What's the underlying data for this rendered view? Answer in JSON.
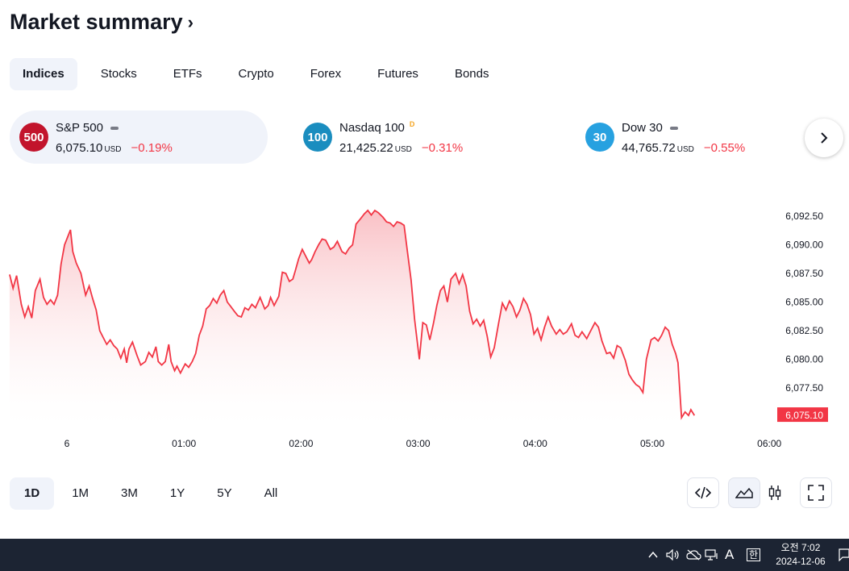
{
  "page": {
    "title": "Market summary",
    "title_chevron": "›"
  },
  "tabs": [
    "Indices",
    "Stocks",
    "ETFs",
    "Crypto",
    "Forex",
    "Futures",
    "Bonds"
  ],
  "active_tab": "Indices",
  "cards": [
    {
      "badge": "500",
      "badge_color": "#c2142c",
      "name": "S&P 500",
      "marker": "dash",
      "value": "6,075.10",
      "currency": "USD",
      "change": "−0.19%",
      "active": true
    },
    {
      "badge": "100",
      "badge_color": "#1a8dbf",
      "name": "Nasdaq 100",
      "marker": "D",
      "value": "21,425.22",
      "currency": "USD",
      "change": "−0.31%",
      "active": false
    },
    {
      "badge": "30",
      "badge_color": "#27a1e0",
      "name": "Dow 30",
      "marker": "dash",
      "value": "44,765.72",
      "currency": "USD",
      "change": "−0.55%",
      "active": false
    }
  ],
  "next_button_icon": "chevron-right-icon",
  "chart_data": {
    "type": "area",
    "x_ticks": [
      "6",
      "01:00",
      "02:00",
      "03:00",
      "04:00",
      "05:00",
      "06:00"
    ],
    "y_ticks": [
      "6,092.50",
      "6,090.00",
      "6,087.50",
      "6,085.00",
      "6,082.50",
      "6,080.00",
      "6,077.50"
    ],
    "y_range": [
      6074.0,
      6093.5
    ],
    "x_range_hours": [
      -0.5,
      6.2
    ],
    "last_price_label": "6,075.10",
    "line_color": "#f23645",
    "fill_top_color": "#f7a6ad",
    "series": [
      {
        "values": [
          [
            -0.49,
            6087.4
          ],
          [
            -0.46,
            6086.2
          ],
          [
            -0.43,
            6087.3
          ],
          [
            -0.39,
            6084.8
          ],
          [
            -0.36,
            6083.7
          ],
          [
            -0.33,
            6084.6
          ],
          [
            -0.3,
            6083.6
          ],
          [
            -0.27,
            6086.0
          ],
          [
            -0.23,
            6087.0
          ],
          [
            -0.2,
            6085.4
          ],
          [
            -0.17,
            6084.8
          ],
          [
            -0.14,
            6085.2
          ],
          [
            -0.11,
            6084.8
          ],
          [
            -0.08,
            6085.6
          ],
          [
            -0.05,
            6088.3
          ],
          [
            -0.02,
            6090.0
          ],
          [
            0.03,
            6091.3
          ],
          [
            0.05,
            6089.4
          ],
          [
            0.08,
            6088.4
          ],
          [
            0.12,
            6087.5
          ],
          [
            0.16,
            6085.6
          ],
          [
            0.19,
            6086.4
          ],
          [
            0.22,
            6085.3
          ],
          [
            0.25,
            6084.3
          ],
          [
            0.28,
            6082.5
          ],
          [
            0.31,
            6081.9
          ],
          [
            0.34,
            6081.3
          ],
          [
            0.37,
            6081.7
          ],
          [
            0.4,
            6081.2
          ],
          [
            0.43,
            6080.9
          ],
          [
            0.46,
            6080.1
          ],
          [
            0.49,
            6080.9
          ],
          [
            0.51,
            6079.7
          ],
          [
            0.53,
            6080.9
          ],
          [
            0.56,
            6081.5
          ],
          [
            0.6,
            6080.3
          ],
          [
            0.63,
            6079.5
          ],
          [
            0.67,
            6079.8
          ],
          [
            0.7,
            6080.6
          ],
          [
            0.73,
            6080.2
          ],
          [
            0.76,
            6081.1
          ],
          [
            0.78,
            6079.8
          ],
          [
            0.81,
            6079.5
          ],
          [
            0.84,
            6079.8
          ],
          [
            0.87,
            6081.3
          ],
          [
            0.89,
            6079.8
          ],
          [
            0.92,
            6079.0
          ],
          [
            0.94,
            6079.4
          ],
          [
            0.97,
            6078.8
          ],
          [
            1.01,
            6079.6
          ],
          [
            1.04,
            6079.3
          ],
          [
            1.07,
            6079.8
          ],
          [
            1.1,
            6080.5
          ],
          [
            1.13,
            6082.1
          ],
          [
            1.16,
            6082.9
          ],
          [
            1.19,
            6084.4
          ],
          [
            1.22,
            6084.7
          ],
          [
            1.25,
            6085.3
          ],
          [
            1.28,
            6084.9
          ],
          [
            1.31,
            6085.6
          ],
          [
            1.34,
            6086.0
          ],
          [
            1.37,
            6085.0
          ],
          [
            1.4,
            6084.6
          ],
          [
            1.43,
            6084.2
          ],
          [
            1.46,
            6083.8
          ],
          [
            1.49,
            6083.7
          ],
          [
            1.52,
            6084.5
          ],
          [
            1.55,
            6084.3
          ],
          [
            1.58,
            6084.8
          ],
          [
            1.61,
            6084.5
          ],
          [
            1.65,
            6085.4
          ],
          [
            1.69,
            6084.4
          ],
          [
            1.72,
            6084.7
          ],
          [
            1.74,
            6085.4
          ],
          [
            1.77,
            6084.7
          ],
          [
            1.81,
            6085.5
          ],
          [
            1.84,
            6087.6
          ],
          [
            1.87,
            6087.5
          ],
          [
            1.9,
            6086.8
          ],
          [
            1.93,
            6087.0
          ],
          [
            1.95,
            6087.7
          ],
          [
            1.98,
            6088.8
          ],
          [
            2.01,
            6089.6
          ],
          [
            2.04,
            6089.0
          ],
          [
            2.07,
            6088.4
          ],
          [
            2.09,
            6088.7
          ],
          [
            2.12,
            6089.4
          ],
          [
            2.15,
            6090.0
          ],
          [
            2.18,
            6090.5
          ],
          [
            2.21,
            6090.4
          ],
          [
            2.25,
            6089.6
          ],
          [
            2.28,
            6089.8
          ],
          [
            2.31,
            6090.3
          ],
          [
            2.35,
            6089.4
          ],
          [
            2.38,
            6089.2
          ],
          [
            2.41,
            6089.7
          ],
          [
            2.44,
            6090.0
          ],
          [
            2.47,
            6091.8
          ],
          [
            2.51,
            6092.3
          ],
          [
            2.54,
            6092.7
          ],
          [
            2.57,
            6093.0
          ],
          [
            2.6,
            6092.6
          ],
          [
            2.63,
            6093.0
          ],
          [
            2.66,
            6092.8
          ],
          [
            2.7,
            6092.4
          ],
          [
            2.73,
            6092.0
          ],
          [
            2.76,
            6091.9
          ],
          [
            2.79,
            6091.6
          ],
          [
            2.82,
            6092.0
          ],
          [
            2.85,
            6091.9
          ],
          [
            2.88,
            6091.7
          ],
          [
            2.91,
            6089.3
          ],
          [
            2.94,
            6086.9
          ],
          [
            2.97,
            6083.5
          ],
          [
            3.01,
            6080.0
          ],
          [
            3.04,
            6083.2
          ],
          [
            3.07,
            6083.0
          ],
          [
            3.1,
            6081.7
          ],
          [
            3.13,
            6083.1
          ],
          [
            3.16,
            6084.7
          ],
          [
            3.19,
            6086.0
          ],
          [
            3.22,
            6086.4
          ],
          [
            3.25,
            6085.0
          ],
          [
            3.28,
            6087.0
          ],
          [
            3.32,
            6087.5
          ],
          [
            3.35,
            6086.6
          ],
          [
            3.38,
            6087.4
          ],
          [
            3.41,
            6086.4
          ],
          [
            3.44,
            6084.2
          ],
          [
            3.47,
            6083.1
          ],
          [
            3.5,
            6083.5
          ],
          [
            3.53,
            6082.9
          ],
          [
            3.56,
            6083.4
          ],
          [
            3.59,
            6082.0
          ],
          [
            3.62,
            6080.2
          ],
          [
            3.65,
            6081.0
          ],
          [
            3.69,
            6083.3
          ],
          [
            3.72,
            6084.9
          ],
          [
            3.75,
            6084.3
          ],
          [
            3.78,
            6085.1
          ],
          [
            3.81,
            6084.6
          ],
          [
            3.84,
            6083.7
          ],
          [
            3.87,
            6084.3
          ],
          [
            3.9,
            6085.3
          ],
          [
            3.93,
            6084.8
          ],
          [
            3.96,
            6083.9
          ],
          [
            3.99,
            6082.2
          ],
          [
            4.02,
            6082.7
          ],
          [
            4.05,
            6081.7
          ],
          [
            4.08,
            6082.8
          ],
          [
            4.11,
            6083.7
          ],
          [
            4.14,
            6082.9
          ],
          [
            4.18,
            6082.2
          ],
          [
            4.21,
            6082.6
          ],
          [
            4.24,
            6082.2
          ],
          [
            4.27,
            6082.4
          ],
          [
            4.31,
            6083.1
          ],
          [
            4.34,
            6082.1
          ],
          [
            4.37,
            6081.9
          ],
          [
            4.4,
            6082.4
          ],
          [
            4.44,
            6081.8
          ],
          [
            4.47,
            6082.4
          ],
          [
            4.51,
            6083.2
          ],
          [
            4.54,
            6082.8
          ],
          [
            4.57,
            6081.6
          ],
          [
            4.61,
            6080.5
          ],
          [
            4.64,
            6080.6
          ],
          [
            4.67,
            6080.1
          ],
          [
            4.7,
            6081.2
          ],
          [
            4.73,
            6081.0
          ],
          [
            4.77,
            6079.9
          ],
          [
            4.8,
            6078.7
          ],
          [
            4.83,
            6078.2
          ],
          [
            4.86,
            6077.8
          ],
          [
            4.89,
            6077.6
          ],
          [
            4.92,
            6077.1
          ],
          [
            4.95,
            6080.0
          ],
          [
            4.99,
            6081.7
          ],
          [
            5.02,
            6081.9
          ],
          [
            5.05,
            6081.6
          ],
          [
            5.08,
            6082.1
          ],
          [
            5.11,
            6082.8
          ],
          [
            5.14,
            6082.5
          ],
          [
            5.17,
            6081.3
          ],
          [
            5.2,
            6080.5
          ],
          [
            5.22,
            6079.7
          ],
          [
            5.25,
            6074.9
          ],
          [
            5.28,
            6075.4
          ],
          [
            5.31,
            6075.1
          ],
          [
            5.33,
            6075.6
          ],
          [
            5.36,
            6075.1
          ]
        ]
      }
    ],
    "grid": false,
    "legend": "none"
  },
  "ranges": [
    "1D",
    "1M",
    "3M",
    "1Y",
    "5Y",
    "All"
  ],
  "active_range": "1D",
  "tools": [
    {
      "name": "embed-code-icon",
      "active": false
    },
    {
      "name": "area-chart-icon",
      "active": true
    },
    {
      "name": "candle-chart-icon",
      "active": false
    },
    {
      "name": "fullscreen-icon",
      "active": false
    }
  ],
  "taskbar": {
    "ime_letter": "A",
    "ime_lang": "한",
    "time": "오전 7:02",
    "date": "2024-12-06"
  }
}
